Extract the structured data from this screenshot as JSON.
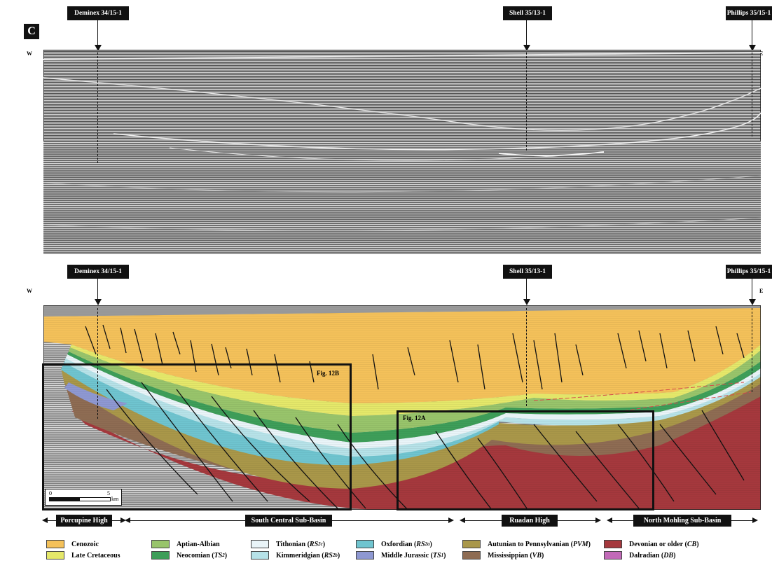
{
  "panel_letter": "C",
  "wells": {
    "left": "Deminex 34/15-1",
    "middle": "Shell 35/13-1",
    "right": "Phillips 35/15-1"
  },
  "directions": {
    "west": "W",
    "east": "E"
  },
  "figure_boxes": {
    "box_b": "Fig. 12B",
    "box_a": "Fig. 12A"
  },
  "scale": {
    "zero": "0",
    "five": "5",
    "unit": "km"
  },
  "regions": [
    "Porcupine High",
    "South Central Sub-Basin",
    "Ruadan High",
    "North Mohling Sub-Basin"
  ],
  "legend": [
    {
      "label": "Cenozoic",
      "abbr": "",
      "abbr_sub": "",
      "color": "#f4c15a"
    },
    {
      "label": "Late Cretaceous",
      "abbr": "",
      "abbr_sub": "",
      "color": "#e5e86a"
    },
    {
      "label": "Aptian-Albian",
      "abbr": "",
      "abbr_sub": "",
      "color": "#98c46b"
    },
    {
      "label": "Neocomian",
      "abbr": "TS",
      "abbr_sub": "2",
      "color": "#3e9e59"
    },
    {
      "label": "Tithonian",
      "abbr": "RS",
      "abbr_sub": "2c",
      "color": "#e9f4f8"
    },
    {
      "label": "Kimmeridgian",
      "abbr": "RS",
      "abbr_sub": "2b",
      "color": "#b6e2e8"
    },
    {
      "label": "Oxfordian",
      "abbr": "RS",
      "abbr_sub": "2a",
      "color": "#6fc4cf"
    },
    {
      "label": "Middle Jurassic",
      "abbr": "TS",
      "abbr_sub": "1",
      "color": "#8e98d2"
    },
    {
      "label": "Autunian to Pennsylvanian",
      "abbr": "PVM",
      "abbr_sub": "",
      "color": "#a99749"
    },
    {
      "label": "Mississippian",
      "abbr": "VB",
      "abbr_sub": "",
      "color": "#8e6c53"
    },
    {
      "label": "Devonian or older",
      "abbr": "CB",
      "abbr_sub": "",
      "color": "#a5383d"
    },
    {
      "label": "Dalradian",
      "abbr": "DB",
      "abbr_sub": "",
      "color": "#c26ab8"
    }
  ]
}
